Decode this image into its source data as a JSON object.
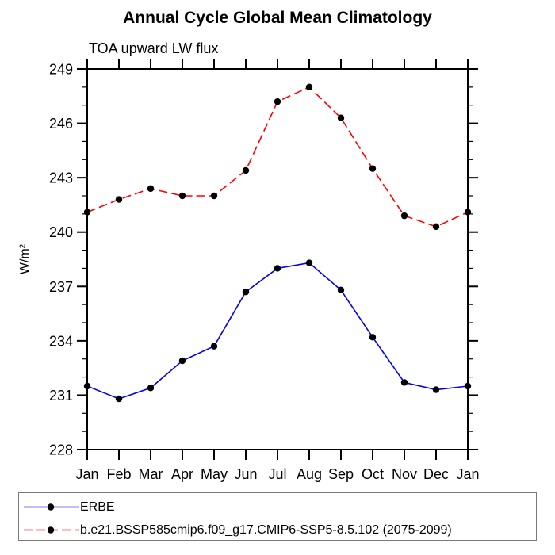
{
  "page": {
    "title": "Annual Cycle Global Mean Climatology",
    "subtitle": "TOA upward LW flux"
  },
  "colors": {
    "background": "#FFFFFF",
    "axis": "#000000",
    "text": "#000000",
    "legend_border": "#7A7A7A",
    "erbe_line": "#0000EE",
    "model_line": "#FF0000",
    "marker": "#000000"
  },
  "chart_data": {
    "type": "line",
    "title": "Annual Cycle Global Mean Climatology",
    "subtitle": "TOA upward LW flux",
    "xlabel": "",
    "ylabel": "W/m²",
    "categories": [
      "Jan",
      "Feb",
      "Mar",
      "Apr",
      "May",
      "Jun",
      "Jul",
      "Aug",
      "Sep",
      "Oct",
      "Nov",
      "Dec",
      "Jan"
    ],
    "ylim": [
      228,
      249
    ],
    "y_major_ticks": [
      228,
      231,
      234,
      237,
      240,
      243,
      246,
      249
    ],
    "y_minor_step": 1,
    "grid": false,
    "legend_position": "bottom-box",
    "series": [
      {
        "name": "ERBE",
        "color": "#0000EE",
        "line_style": "solid",
        "marker": "filled-circle",
        "marker_color": "#000000",
        "values": [
          231.5,
          230.8,
          231.4,
          232.9,
          233.7,
          236.7,
          238.0,
          238.3,
          236.8,
          234.2,
          231.7,
          231.3,
          231.5
        ]
      },
      {
        "name": "b.e21.BSSP585cmip6.f09_g17.CMIP6-SSP5-8.5.102 (2075-2099)",
        "color": "#FF0000",
        "line_style": "dashed",
        "marker": "filled-circle",
        "marker_color": "#000000",
        "values": [
          241.1,
          241.8,
          242.4,
          242.0,
          242.0,
          243.4,
          247.2,
          248.0,
          246.3,
          243.5,
          240.9,
          240.3,
          241.1
        ]
      }
    ]
  }
}
